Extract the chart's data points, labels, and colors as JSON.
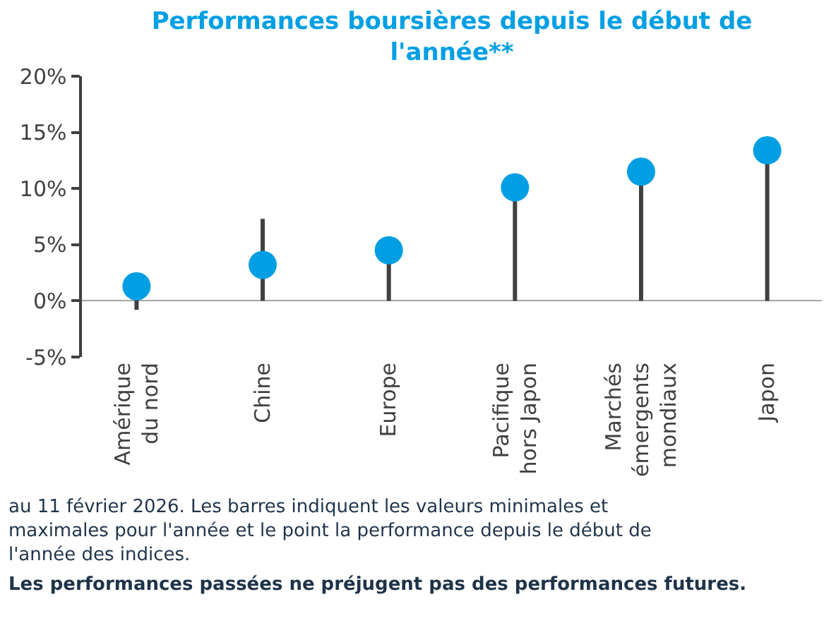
{
  "chart_data": {
    "type": "scatter",
    "title": "Performances boursières depuis le début de l'année**",
    "categories": [
      "Amérique du nord",
      "Chine",
      "Europe",
      "Pacifique hors Japon",
      "Marchés émergents mondiaux",
      "Japon"
    ],
    "values": [
      1.3,
      3.2,
      4.5,
      10.1,
      11.5,
      13.4
    ],
    "color": "#009fe3",
    "errors": [
      [
        -0.8,
        1.3
      ],
      [
        0,
        7.3
      ],
      [
        0,
        4.5
      ],
      [
        0,
        10.1
      ],
      [
        0,
        11.5
      ],
      [
        0,
        13.4
      ]
    ],
    "ylim": [
      -5,
      20
    ],
    "yticks": [
      {
        "value": -5,
        "label": "-5%"
      },
      {
        "value": 0,
        "label": "0%"
      },
      {
        "value": 5,
        "label": "5%"
      },
      {
        "value": 10,
        "label": "10%"
      },
      {
        "value": 15,
        "label": "15%"
      },
      {
        "value": 20,
        "label": "20%"
      }
    ],
    "marker": "circle",
    "annotations": [
      "au 11 février 2026. Les barres indiquent les valeurs minimales et maximales pour l'année et le point la performance depuis le début de l'année des indices.",
      "Les performances passées ne préjugent pas des performances futures."
    ]
  }
}
